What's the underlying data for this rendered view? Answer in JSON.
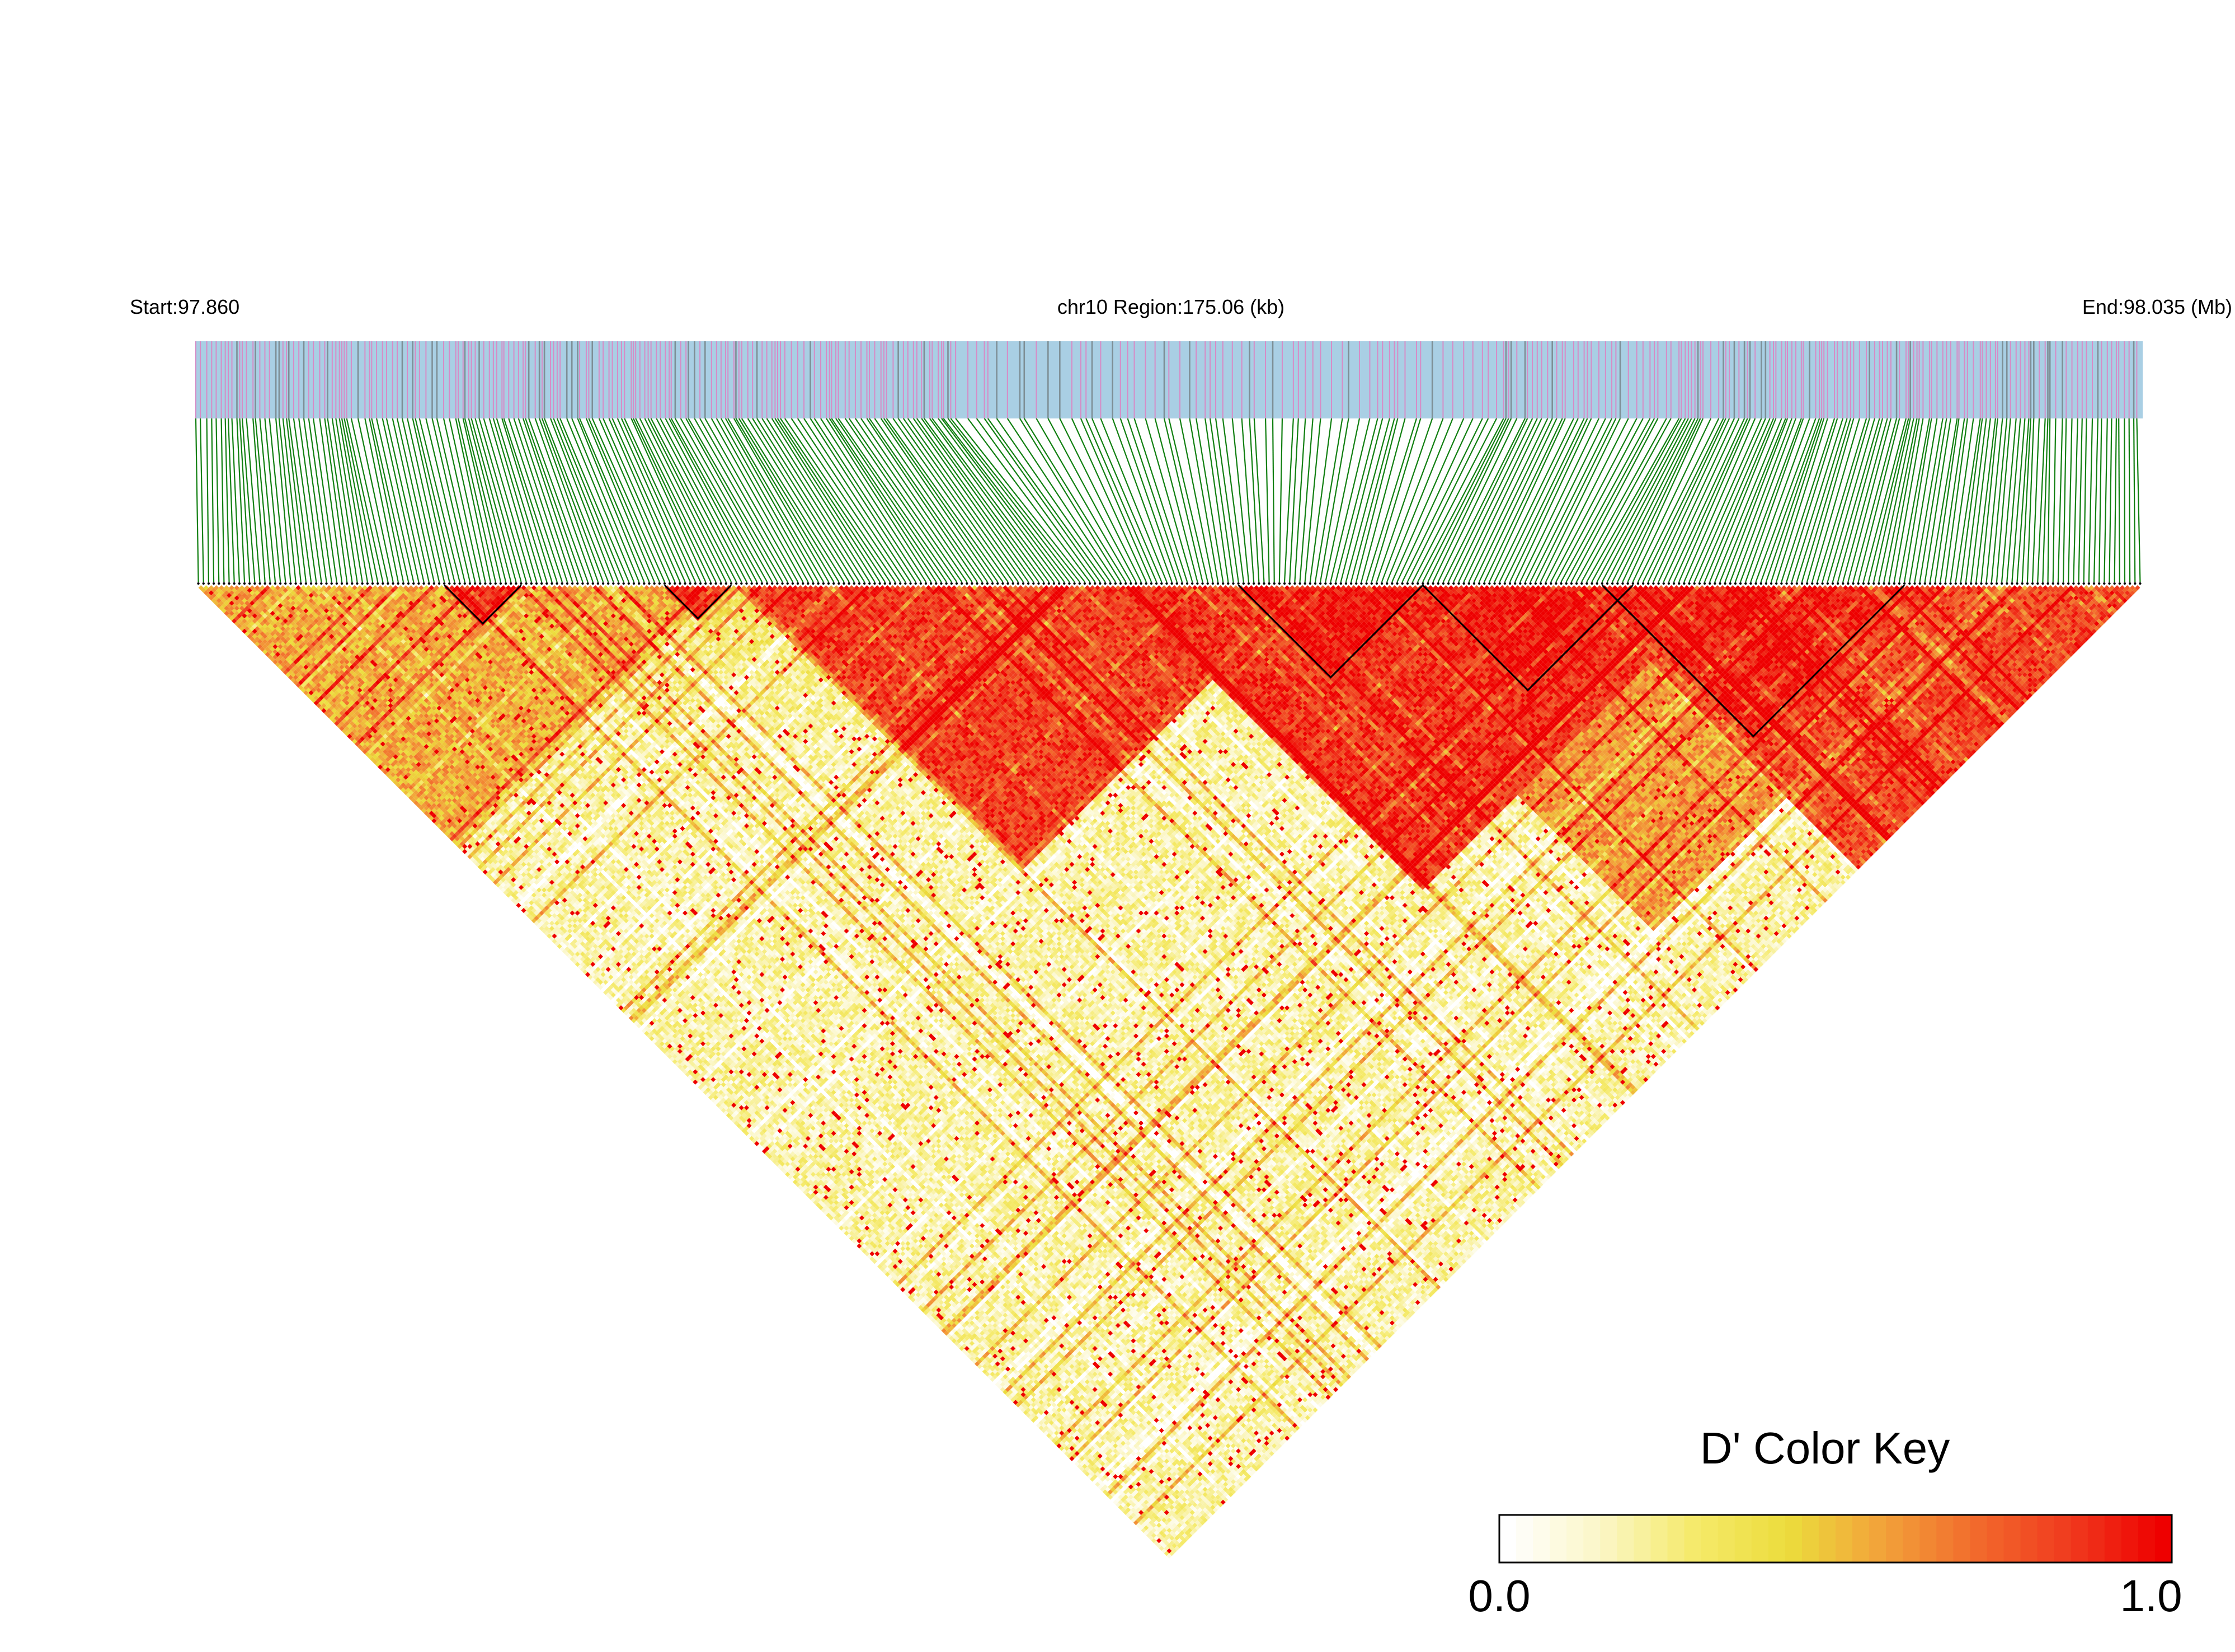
{
  "chart_data": {
    "type": "heatmap",
    "subtype": "LD triangle (D')",
    "header": {
      "start_label": "Start:97.860",
      "region_label": "chr10 Region:175.06 (kb)",
      "end_label": "End:98.035 (Mb)"
    },
    "region": {
      "chromosome": "chr10",
      "start_mb": 97.86,
      "end_mb": 98.035,
      "length_kb": 175.06
    },
    "color_key": {
      "title": "D' Color Key",
      "min_label": "0.0",
      "max_label": "1.0",
      "min": 0.0,
      "max": 1.0,
      "colors": [
        "#ffffff",
        "#fbf6c6",
        "#f5ea6a",
        "#ecdc3c",
        "#f2a23a",
        "#f26a2c",
        "#f03a1e",
        "#ee0000"
      ]
    },
    "colors": {
      "track_background": "#a9cfe4",
      "marker_pink": "#d78bc6",
      "marker_gray": "#7e8f96",
      "connector_green": "#107f10",
      "block_outline": "#000000",
      "ld_high": "#ee0000",
      "ld_low": "#ffffff"
    },
    "num_markers": 380,
    "ld_blocks": [
      {
        "from_mb": 97.9518,
        "to_mb": 97.9777,
        "mean_dprime": 0.98
      },
      {
        "from_mb": 97.9777,
        "to_mb": 97.996,
        "mean_dprime": 0.97
      },
      {
        "from_mb": 97.9941,
        "to_mb": 98.0161,
        "mean_dprime": 0.94
      },
      {
        "from_mb": 97.8792,
        "to_mb": 97.8852,
        "mean_dprime": 0.9
      },
      {
        "from_mb": 97.8955,
        "to_mb": 97.9007,
        "mean_dprime": 0.9
      }
    ],
    "ld_regions": [
      {
        "from_mb": 97.9015,
        "to_mb": 97.9615,
        "mean_dprime": 0.85
      },
      {
        "from_mb": 97.934,
        "to_mb": 98.003,
        "mean_dprime": 0.88
      },
      {
        "from_mb": 97.992,
        "to_mb": 98.035,
        "mean_dprime": 0.82
      },
      {
        "from_mb": 97.962,
        "to_mb": 98.023,
        "mean_dprime": 0.6
      },
      {
        "from_mb": 97.86,
        "to_mb": 97.9,
        "mean_dprime": 0.55
      },
      {
        "from_mb": 97.962,
        "to_mb": 97.983,
        "mean_dprime": 0.22
      }
    ]
  }
}
